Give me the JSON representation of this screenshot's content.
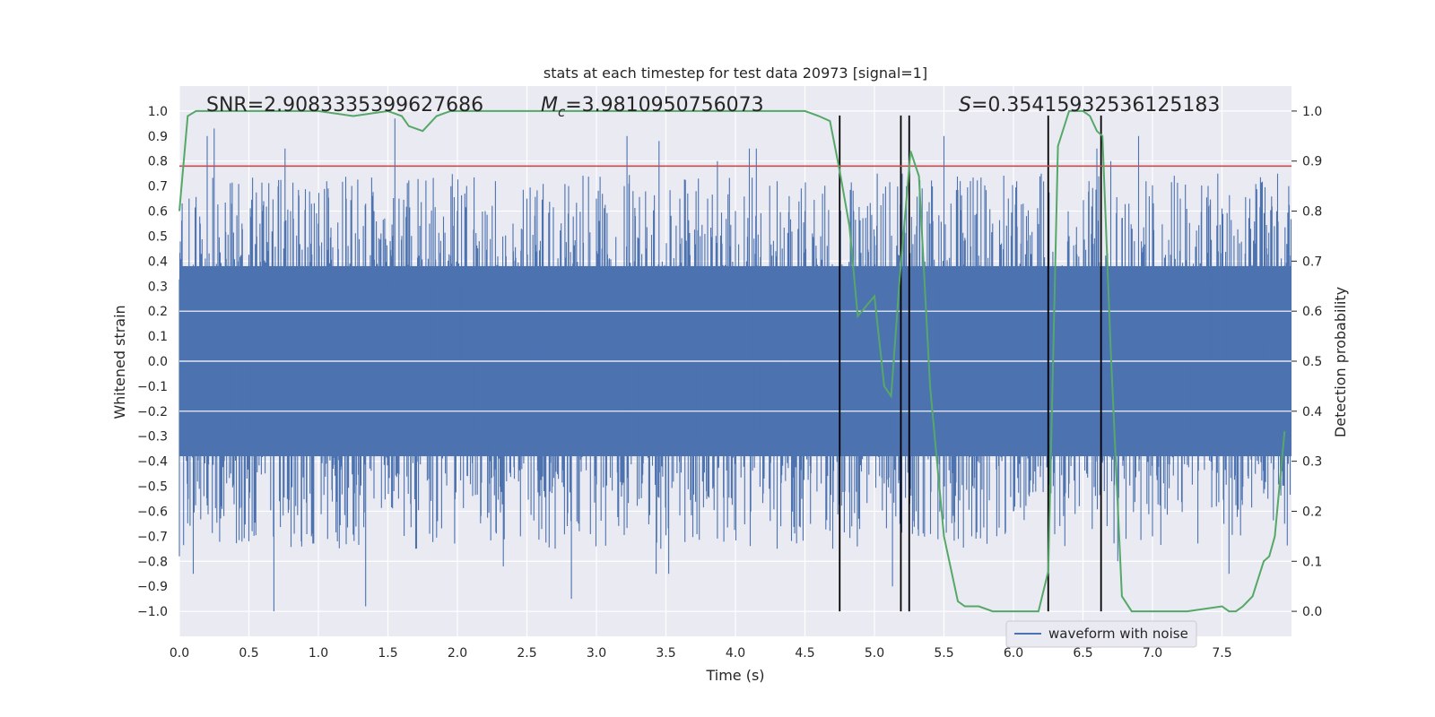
{
  "chart_data": {
    "type": "line",
    "title": "stats at each timestep for test data 20973 [signal=1]",
    "xlabel": "Time (s)",
    "ylabel": "Whitened strain",
    "y2label": "Detection probability",
    "xlim": [
      0.0,
      8.0
    ],
    "ylim": [
      -1.1,
      1.1
    ],
    "y2lim": [
      -0.05,
      1.05
    ],
    "xticks": [
      0.0,
      0.5,
      1.0,
      1.5,
      2.0,
      2.5,
      3.0,
      3.5,
      4.0,
      4.5,
      5.0,
      5.5,
      6.0,
      6.5,
      7.0,
      7.5
    ],
    "yticks": [
      -1.0,
      -0.9,
      -0.8,
      -0.7,
      -0.6,
      -0.5,
      -0.4,
      -0.3,
      -0.2,
      -0.1,
      0.0,
      0.1,
      0.2,
      0.3,
      0.4,
      0.5,
      0.6,
      0.7,
      0.8,
      0.9,
      1.0
    ],
    "y2ticks": [
      0.0,
      0.1,
      0.2,
      0.3,
      0.4,
      0.5,
      0.6,
      0.7,
      0.8,
      0.9,
      1.0
    ],
    "xtick_labels": [
      "0.0",
      "0.5",
      "1.0",
      "1.5",
      "2.0",
      "2.5",
      "3.0",
      "3.5",
      "4.0",
      "4.5",
      "5.0",
      "5.5",
      "6.0",
      "6.5",
      "7.0",
      "7.5"
    ],
    "ytick_labels": [
      "−1.0",
      "−0.9",
      "−0.8",
      "−0.7",
      "−0.6",
      "−0.5",
      "−0.4",
      "−0.3",
      "−0.2",
      "−0.1",
      "0.0",
      "0.1",
      "0.2",
      "0.3",
      "0.4",
      "0.5",
      "0.6",
      "0.7",
      "0.8",
      "0.9",
      "1.0"
    ],
    "y2tick_labels": [
      "0.0",
      "0.1",
      "0.2",
      "0.3",
      "0.4",
      "0.5",
      "0.6",
      "0.7",
      "0.8",
      "0.9",
      "1.0"
    ],
    "annotations": {
      "snr": "SNR=2.9083335399627686",
      "mc": "=3.9810950756073",
      "mc_symbol": "M",
      "mc_sub": "c",
      "s": "=0.35415932536125183",
      "s_symbol": "S"
    },
    "legend": {
      "label": "waveform with noise",
      "placement": "lower-right"
    },
    "series": [
      {
        "name": "waveform with noise",
        "axis": "left",
        "color": "#4c72b0",
        "style": "dense noise trace",
        "core_envelope": 0.38,
        "peaks": [
          [
            0.0,
            -0.78
          ],
          [
            0.02,
            0.55
          ],
          [
            0.07,
            0.65
          ],
          [
            0.1,
            -0.85
          ],
          [
            0.15,
            0.55
          ],
          [
            0.2,
            0.9
          ],
          [
            0.25,
            0.93
          ],
          [
            0.3,
            -0.58
          ],
          [
            0.45,
            0.55
          ],
          [
            0.5,
            -0.72
          ],
          [
            0.6,
            0.6
          ],
          [
            0.68,
            -1.0
          ],
          [
            0.76,
            0.85
          ],
          [
            0.8,
            0.6
          ],
          [
            0.95,
            -0.7
          ],
          [
            1.0,
            0.55
          ],
          [
            1.2,
            0.65
          ],
          [
            1.34,
            -0.98
          ],
          [
            1.4,
            0.6
          ],
          [
            1.55,
            0.97
          ],
          [
            1.58,
            0.65
          ],
          [
            1.7,
            -0.75
          ],
          [
            1.8,
            0.55
          ],
          [
            2.0,
            0.6
          ],
          [
            2.2,
            0.6
          ],
          [
            2.33,
            -0.82
          ],
          [
            2.4,
            0.55
          ],
          [
            2.5,
            0.65
          ],
          [
            2.8,
            0.7
          ],
          [
            2.82,
            -0.95
          ],
          [
            3.0,
            0.65
          ],
          [
            3.2,
            0.7
          ],
          [
            3.22,
            0.9
          ],
          [
            3.43,
            -0.85
          ],
          [
            3.45,
            0.88
          ],
          [
            3.52,
            -0.85
          ],
          [
            3.6,
            0.65
          ],
          [
            3.8,
            0.65
          ],
          [
            3.87,
            0.8
          ],
          [
            4.0,
            0.6
          ],
          [
            4.1,
            0.85
          ],
          [
            4.15,
            0.85
          ],
          [
            4.3,
            -0.75
          ],
          [
            4.5,
            0.6
          ],
          [
            4.7,
            -0.75
          ],
          [
            4.85,
            0.6
          ],
          [
            5.0,
            0.5
          ],
          [
            5.02,
            0.75
          ],
          [
            5.13,
            -0.9
          ],
          [
            5.2,
            0.75
          ],
          [
            5.3,
            -0.6
          ],
          [
            5.4,
            0.55
          ],
          [
            5.5,
            0.9
          ],
          [
            5.7,
            -0.7
          ],
          [
            5.85,
            0.55
          ],
          [
            6.0,
            -0.6
          ],
          [
            6.2,
            0.75
          ],
          [
            6.4,
            0.5
          ],
          [
            6.6,
            0.85
          ],
          [
            6.7,
            0.8
          ],
          [
            6.75,
            -0.8
          ],
          [
            6.9,
            0.9
          ],
          [
            7.0,
            -0.7
          ],
          [
            7.2,
            0.65
          ],
          [
            7.4,
            0.65
          ],
          [
            7.55,
            -0.85
          ],
          [
            7.7,
            0.65
          ],
          [
            7.83,
            -0.55
          ],
          [
            7.9,
            0.75
          ],
          [
            7.95,
            -0.65
          ],
          [
            7.98,
            0.7
          ]
        ]
      },
      {
        "name": "detection probability",
        "axis": "right",
        "color": "#55a868",
        "x": [
          0.0,
          0.06,
          0.12,
          0.25,
          0.5,
          1.0,
          1.25,
          1.5,
          1.6,
          1.65,
          1.75,
          1.85,
          1.95,
          2.3,
          2.6,
          3.0,
          3.5,
          4.0,
          4.5,
          4.6,
          4.68,
          4.75,
          4.82,
          4.88,
          5.0,
          5.07,
          5.12,
          5.18,
          5.26,
          5.32,
          5.4,
          5.5,
          5.6,
          5.65,
          5.75,
          5.85,
          6.0,
          6.18,
          6.25,
          6.32,
          6.4,
          6.5,
          6.55,
          6.6,
          6.64,
          6.7,
          6.78,
          6.85,
          7.0,
          7.25,
          7.5,
          7.55,
          7.6,
          7.65,
          7.72,
          7.8,
          7.84,
          7.88,
          7.95
        ],
        "values": [
          0.8,
          0.99,
          1.0,
          1.0,
          1.0,
          1.0,
          0.99,
          1.0,
          0.99,
          0.97,
          0.96,
          0.99,
          1.0,
          1.0,
          1.0,
          1.0,
          1.0,
          1.0,
          1.0,
          0.99,
          0.98,
          0.88,
          0.77,
          0.59,
          0.63,
          0.45,
          0.43,
          0.66,
          0.92,
          0.87,
          0.45,
          0.15,
          0.02,
          0.01,
          0.01,
          0.0,
          0.0,
          0.0,
          0.08,
          0.93,
          1.0,
          1.0,
          0.99,
          0.96,
          0.95,
          0.52,
          0.03,
          0.0,
          0.0,
          0.0,
          0.01,
          0.0,
          0.0,
          0.01,
          0.03,
          0.1,
          0.11,
          0.15,
          0.36
        ]
      },
      {
        "name": "threshold",
        "axis": "left",
        "color": "#c44e52",
        "y": 0.78
      }
    ],
    "vertical_markers": {
      "color": "#000000",
      "x": [
        4.75,
        5.19,
        5.25,
        6.25,
        6.63
      ],
      "y_range": [
        -1.0,
        1.0
      ]
    }
  }
}
